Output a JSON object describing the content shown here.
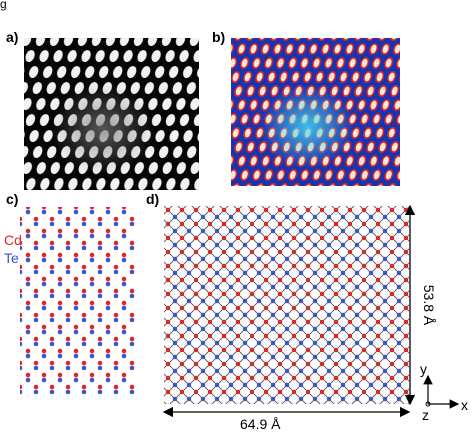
{
  "header_fragment": "g",
  "panels": {
    "a": "a)",
    "b": "b)",
    "c": "c)",
    "d": "d)"
  },
  "legend": {
    "cd": "Cd",
    "te": "Te"
  },
  "dimensions": {
    "height": "53.8 Å",
    "width": "64.9 Å"
  },
  "axes": {
    "y": "y",
    "z": "z",
    "x": "x"
  }
}
